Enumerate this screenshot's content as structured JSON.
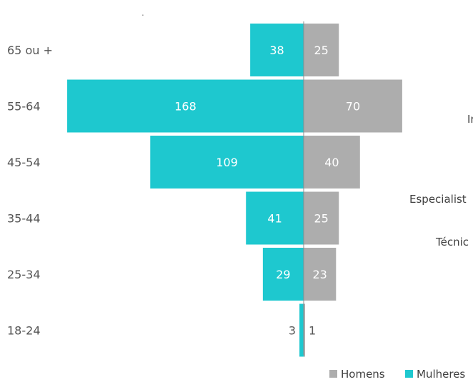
{
  "chart_data": {
    "type": "bar",
    "orientation": "horizontal",
    "stacked_diverging": true,
    "categories": [
      "65 ou +",
      "55-64",
      "45-54",
      "35-44",
      "25-34",
      "18-24"
    ],
    "series": [
      {
        "name": "Mulheres",
        "values": [
          38,
          168,
          109,
          41,
          29,
          3
        ],
        "color": "#1ec8cf",
        "side": "left"
      },
      {
        "name": "Homens",
        "values": [
          25,
          70,
          40,
          25,
          23,
          1
        ],
        "color": "#adadad",
        "side": "right"
      }
    ],
    "legend": {
      "position": "bottom-right",
      "items": [
        "Homens",
        "Mulheres"
      ]
    },
    "grid": false,
    "title": "",
    "xlabel": "",
    "ylabel": ""
  },
  "clipped_labels": [
    "In",
    "Especialist",
    "Técnic"
  ],
  "stray_mark": "."
}
